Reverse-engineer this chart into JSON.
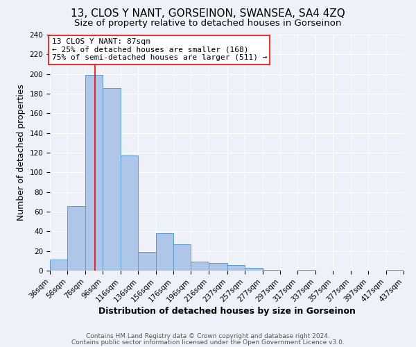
{
  "title": "13, CLOS Y NANT, GORSEINON, SWANSEA, SA4 4ZQ",
  "subtitle": "Size of property relative to detached houses in Gorseinon",
  "xlabel": "Distribution of detached houses by size in Gorseinon",
  "ylabel": "Number of detached properties",
  "bin_edges": [
    36,
    56,
    76,
    96,
    116,
    136,
    156,
    176,
    196,
    216,
    237,
    257,
    277,
    297,
    317,
    337,
    357,
    377,
    397,
    417,
    437
  ],
  "bin_heights": [
    11,
    66,
    199,
    186,
    117,
    19,
    38,
    27,
    9,
    8,
    6,
    3,
    1,
    0,
    1,
    0,
    0,
    0,
    0,
    1
  ],
  "bar_color": "#aec6e8",
  "bar_edgecolor": "#5b9bd5",
  "vline_x": 87,
  "vline_color": "red",
  "ylim": [
    0,
    240
  ],
  "yticks": [
    0,
    20,
    40,
    60,
    80,
    100,
    120,
    140,
    160,
    180,
    200,
    220,
    240
  ],
  "xtick_labels": [
    "36sqm",
    "56sqm",
    "76sqm",
    "96sqm",
    "116sqm",
    "136sqm",
    "156sqm",
    "176sqm",
    "196sqm",
    "216sqm",
    "237sqm",
    "257sqm",
    "277sqm",
    "297sqm",
    "317sqm",
    "337sqm",
    "357sqm",
    "377sqm",
    "397sqm",
    "417sqm",
    "437sqm"
  ],
  "annotation_title": "13 CLOS Y NANT: 87sqm",
  "annotation_line1": "← 25% of detached houses are smaller (168)",
  "annotation_line2": "75% of semi-detached houses are larger (511) →",
  "annotation_box_color": "#ffffff",
  "annotation_box_edgecolor": "red",
  "footer1": "Contains HM Land Registry data © Crown copyright and database right 2024.",
  "footer2": "Contains public sector information licensed under the Open Government Licence v3.0.",
  "background_color": "#eef2f8",
  "grid_color": "#ffffff",
  "title_fontsize": 11,
  "subtitle_fontsize": 9.5,
  "axis_label_fontsize": 9,
  "tick_fontsize": 7.5,
  "annotation_fontsize": 8,
  "footer_fontsize": 6.5
}
